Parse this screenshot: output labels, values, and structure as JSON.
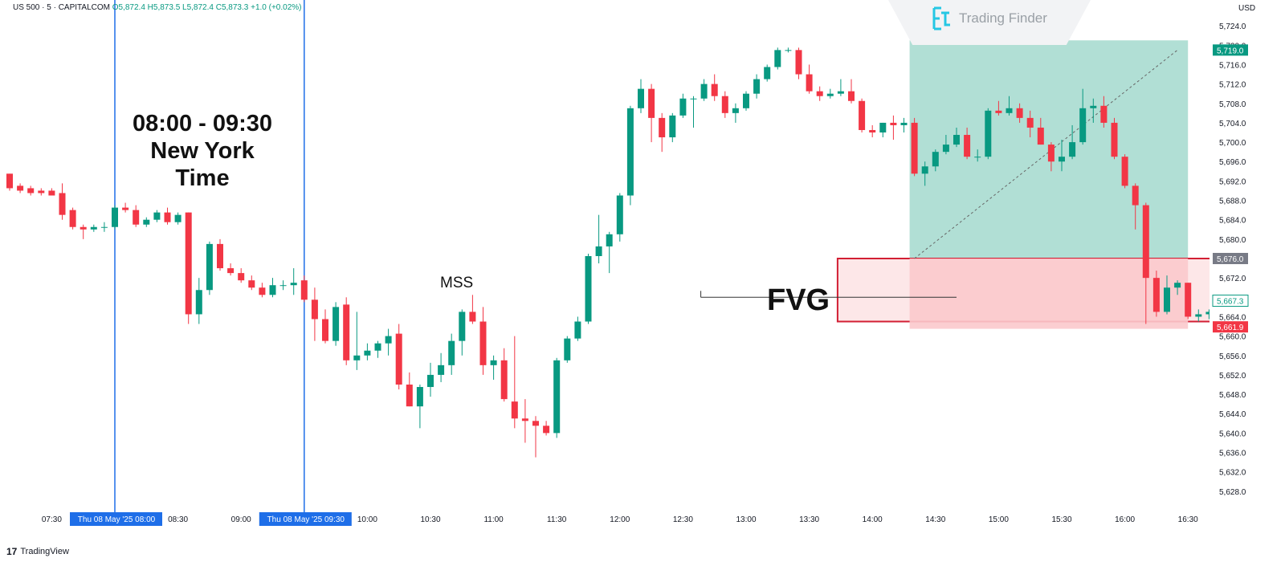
{
  "header": {
    "symbol": "US 500 · 5 · CAPITALCOM",
    "ohlc": "O5,872.4  H5,873.5  L5,872.4  C5,873.3  +1.0 (+0.02%)"
  },
  "currency": "USD",
  "watermark": "Trading Finder",
  "annotations": {
    "session_time": "08:00  -  09:30",
    "session_zone": "New York Time",
    "mss": "MSS",
    "fvg": "FVG"
  },
  "footer": {
    "brand": "TradingView"
  },
  "colors": {
    "bull": "#089981",
    "bear": "#f23645",
    "session_line": "#1e6ee8",
    "zone_green": "#a8dcd0",
    "zone_red": "#fbc9cc",
    "fvg_border": "#d21f34"
  },
  "chart_data": {
    "type": "candlestick",
    "ylim": [
      5624,
      5728
    ],
    "y_ticks": [
      "5,724.0",
      "5,720.0",
      "5,716.0",
      "5,712.0",
      "5,708.0",
      "5,704.0",
      "5,700.0",
      "5,696.0",
      "5,692.0",
      "5,688.0",
      "5,684.0",
      "5,680.0",
      "5,676.0",
      "5,672.0",
      "5,668.0",
      "5,664.0",
      "5,660.0",
      "5,656.0",
      "5,652.0",
      "5,648.0",
      "5,644.0",
      "5,640.0",
      "5,636.0",
      "5,632.0",
      "5,628.0"
    ],
    "x_ticks": [
      {
        "label": "07:30",
        "pos": 4
      },
      {
        "label": "08:30",
        "pos": 16
      },
      {
        "label": "09:00",
        "pos": 22
      },
      {
        "label": "10:00",
        "pos": 34
      },
      {
        "label": "10:30",
        "pos": 40
      },
      {
        "label": "11:00",
        "pos": 46
      },
      {
        "label": "11:30",
        "pos": 52
      },
      {
        "label": "12:00",
        "pos": 58
      },
      {
        "label": "12:30",
        "pos": 64
      },
      {
        "label": "13:00",
        "pos": 70
      },
      {
        "label": "13:30",
        "pos": 76
      },
      {
        "label": "14:00",
        "pos": 82
      },
      {
        "label": "14:30",
        "pos": 88
      },
      {
        "label": "15:00",
        "pos": 94
      },
      {
        "label": "15:30",
        "pos": 100
      },
      {
        "label": "16:00",
        "pos": 106
      },
      {
        "label": "16:30",
        "pos": 112
      }
    ],
    "session_markers": [
      {
        "label": "Thu 08 May '25   08:00",
        "pos": 10
      },
      {
        "label": "Thu 08 May '25   09:30",
        "pos": 28
      }
    ],
    "price_tags": [
      {
        "label": "5,719.0",
        "value": 5719.0,
        "style": "bull"
      },
      {
        "label": "5,676.0",
        "value": 5676.0,
        "style": "gray"
      },
      {
        "label": "5,667.3",
        "value": 5667.3,
        "style": "outline"
      },
      {
        "label": "5,661.9",
        "value": 5661.9,
        "style": "bear"
      }
    ],
    "candles": [
      [
        5693.5,
        5693.5,
        5690.0,
        5690.5
      ],
      [
        5691.0,
        5691.5,
        5689.5,
        5690.0
      ],
      [
        5690.5,
        5691.0,
        5689.0,
        5689.5
      ],
      [
        5690.0,
        5690.5,
        5689.0,
        5689.5
      ],
      [
        5690.0,
        5690.5,
        5689.0,
        5689.0
      ],
      [
        5689.5,
        5691.5,
        5684.0,
        5685.0
      ],
      [
        5686.0,
        5686.5,
        5682.0,
        5682.5
      ],
      [
        5682.5,
        5683.0,
        5680.0,
        5682.0
      ],
      [
        5682.0,
        5683.0,
        5681.5,
        5682.5
      ],
      [
        5682.5,
        5683.5,
        5681.5,
        5682.5
      ],
      [
        5682.5,
        5687.0,
        5682.0,
        5686.5
      ],
      [
        5686.5,
        5687.5,
        5685.5,
        5686.0
      ],
      [
        5686.0,
        5687.0,
        5682.5,
        5683.0
      ],
      [
        5683.0,
        5684.5,
        5682.5,
        5684.0
      ],
      [
        5684.0,
        5686.0,
        5683.5,
        5685.5
      ],
      [
        5685.5,
        5686.5,
        5683.0,
        5683.5
      ],
      [
        5683.5,
        5685.5,
        5683.0,
        5685.0
      ],
      [
        5685.5,
        5685.5,
        5662.5,
        5664.5
      ],
      [
        5664.5,
        5672.0,
        5662.5,
        5669.5
      ],
      [
        5669.5,
        5679.5,
        5668.5,
        5679.0
      ],
      [
        5679.0,
        5680.0,
        5673.5,
        5674.0
      ],
      [
        5674.0,
        5675.0,
        5672.5,
        5673.0
      ],
      [
        5673.0,
        5674.0,
        5671.0,
        5671.5
      ],
      [
        5671.5,
        5672.5,
        5669.5,
        5670.0
      ],
      [
        5670.0,
        5671.0,
        5668.0,
        5668.5
      ],
      [
        5668.5,
        5672.0,
        5668.0,
        5670.5
      ],
      [
        5670.5,
        5671.5,
        5669.5,
        5670.5
      ],
      [
        5670.5,
        5674.0,
        5668.5,
        5671.0
      ],
      [
        5671.5,
        5672.5,
        5667.0,
        5667.5
      ],
      [
        5667.5,
        5670.0,
        5659.0,
        5663.5
      ],
      [
        5663.5,
        5665.5,
        5658.5,
        5659.0
      ],
      [
        5659.0,
        5667.0,
        5658.0,
        5666.0
      ],
      [
        5666.5,
        5668.0,
        5654.0,
        5655.0
      ],
      [
        5655.0,
        5665.0,
        5653.0,
        5656.0
      ],
      [
        5656.0,
        5658.5,
        5655.0,
        5657.0
      ],
      [
        5657.0,
        5659.0,
        5655.5,
        5658.5
      ],
      [
        5658.5,
        5661.5,
        5656.0,
        5660.0
      ],
      [
        5660.5,
        5662.5,
        5649.0,
        5650.0
      ],
      [
        5650.0,
        5652.5,
        5645.5,
        5645.5
      ],
      [
        5645.5,
        5650.0,
        5641.0,
        5649.5
      ],
      [
        5649.5,
        5654.5,
        5647.5,
        5652.0
      ],
      [
        5652.0,
        5656.5,
        5650.5,
        5654.0
      ],
      [
        5654.0,
        5660.5,
        5652.0,
        5659.0
      ],
      [
        5659.0,
        5665.5,
        5656.0,
        5665.0
      ],
      [
        5665.0,
        5668.5,
        5662.5,
        5663.0
      ],
      [
        5663.0,
        5666.0,
        5652.0,
        5654.0
      ],
      [
        5654.0,
        5656.0,
        5651.0,
        5655.0
      ],
      [
        5655.0,
        5657.5,
        5646.5,
        5647.0
      ],
      [
        5646.5,
        5660.0,
        5641.0,
        5643.0
      ],
      [
        5643.0,
        5647.0,
        5638.0,
        5642.5
      ],
      [
        5642.5,
        5643.5,
        5635.0,
        5641.5
      ],
      [
        5641.5,
        5642.5,
        5639.5,
        5640.0
      ],
      [
        5640.0,
        5655.5,
        5639.0,
        5655.0
      ],
      [
        5655.0,
        5660.0,
        5654.5,
        5659.5
      ],
      [
        5659.5,
        5664.0,
        5659.0,
        5663.0
      ],
      [
        5663.0,
        5677.0,
        5662.5,
        5676.5
      ],
      [
        5676.5,
        5685.0,
        5675.0,
        5678.5
      ],
      [
        5678.5,
        5681.5,
        5673.0,
        5681.0
      ],
      [
        5681.0,
        5689.5,
        5679.5,
        5689.0
      ],
      [
        5689.0,
        5707.5,
        5687.0,
        5707.0
      ],
      [
        5707.0,
        5713.0,
        5706.0,
        5711.0
      ],
      [
        5711.0,
        5712.0,
        5700.0,
        5705.0
      ],
      [
        5705.0,
        5706.0,
        5698.0,
        5701.0
      ],
      [
        5701.0,
        5706.0,
        5700.0,
        5705.5
      ],
      [
        5705.5,
        5710.0,
        5705.0,
        5709.0
      ],
      [
        5709.0,
        5709.5,
        5703.0,
        5709.0
      ],
      [
        5709.0,
        5713.0,
        5708.5,
        5712.0
      ],
      [
        5712.0,
        5714.0,
        5708.5,
        5709.5
      ],
      [
        5709.5,
        5710.5,
        5705.0,
        5706.0
      ],
      [
        5706.0,
        5708.0,
        5704.0,
        5707.0
      ],
      [
        5707.0,
        5710.5,
        5706.5,
        5710.0
      ],
      [
        5710.0,
        5714.0,
        5709.0,
        5713.0
      ],
      [
        5713.0,
        5716.0,
        5712.5,
        5715.5
      ],
      [
        5715.5,
        5719.5,
        5715.0,
        5719.0
      ],
      [
        5719.0,
        5719.5,
        5718.5,
        5719.0
      ],
      [
        5719.0,
        5719.5,
        5713.0,
        5714.0
      ],
      [
        5714.0,
        5716.0,
        5710.0,
        5710.5
      ],
      [
        5710.5,
        5711.5,
        5708.5,
        5709.5
      ],
      [
        5709.5,
        5711.0,
        5709.0,
        5710.0
      ],
      [
        5710.0,
        5713.0,
        5709.5,
        5710.5
      ],
      [
        5710.5,
        5713.0,
        5708.0,
        5708.5
      ],
      [
        5708.5,
        5709.0,
        5702.0,
        5702.5
      ],
      [
        5702.5,
        5703.5,
        5701.0,
        5702.0
      ],
      [
        5702.0,
        5704.0,
        5701.0,
        5704.0
      ],
      [
        5704.0,
        5705.5,
        5700.5,
        5703.5
      ],
      [
        5703.5,
        5705.0,
        5702.0,
        5704.0
      ],
      [
        5704.0,
        5705.0,
        5693.0,
        5693.5
      ],
      [
        5693.5,
        5696.0,
        5691.0,
        5695.0
      ],
      [
        5695.0,
        5698.5,
        5694.0,
        5698.0
      ],
      [
        5698.0,
        5701.5,
        5697.5,
        5699.5
      ],
      [
        5699.5,
        5703.0,
        5699.0,
        5701.5
      ],
      [
        5701.5,
        5703.0,
        5696.5,
        5697.0
      ],
      [
        5697.0,
        5698.5,
        5696.0,
        5697.0
      ],
      [
        5697.0,
        5707.0,
        5696.5,
        5706.5
      ],
      [
        5706.5,
        5708.5,
        5705.5,
        5706.0
      ],
      [
        5706.0,
        5709.5,
        5705.5,
        5707.0
      ],
      [
        5707.0,
        5708.0,
        5704.0,
        5705.0
      ],
      [
        5705.0,
        5706.5,
        5701.0,
        5703.0
      ],
      [
        5703.0,
        5705.0,
        5699.5,
        5699.5
      ],
      [
        5699.5,
        5700.0,
        5694.0,
        5696.0
      ],
      [
        5696.0,
        5700.5,
        5694.0,
        5697.0
      ],
      [
        5697.0,
        5703.5,
        5696.5,
        5700.0
      ],
      [
        5700.0,
        5711.0,
        5699.5,
        5707.0
      ],
      [
        5707.0,
        5709.0,
        5704.0,
        5707.5
      ],
      [
        5707.5,
        5709.5,
        5703.0,
        5704.0
      ],
      [
        5704.0,
        5705.0,
        5696.5,
        5697.0
      ],
      [
        5697.0,
        5697.5,
        5690.5,
        5691.0
      ],
      [
        5691.0,
        5691.5,
        5682.0,
        5687.0
      ],
      [
        5687.0,
        5687.5,
        5662.5,
        5672.0
      ],
      [
        5672.0,
        5673.5,
        5664.0,
        5665.0
      ],
      [
        5665.0,
        5672.5,
        5664.5,
        5670.0
      ],
      [
        5670.0,
        5671.5,
        5668.5,
        5671.0
      ],
      [
        5671.0,
        5671.0,
        5663.5,
        5664.0
      ],
      [
        5664.0,
        5665.5,
        5663.0,
        5664.5
      ],
      [
        5664.5,
        5665.5,
        5663.5,
        5665.0
      ],
      [
        5665.0,
        5665.5,
        5663.0,
        5663.0
      ],
      [
        5663.0,
        5664.5,
        5662.5,
        5664.0
      ],
      [
        5664.0,
        5666.5,
        5663.5,
        5666.0
      ],
      [
        5665.5,
        5666.5,
        5665.0,
        5666.0
      ],
      [
        5666.0,
        5667.0,
        5665.5,
        5666.5
      ],
      [
        5666.5,
        5668.5,
        5666.0,
        5667.5
      ]
    ],
    "zones": {
      "green_box": {
        "from": 5676.0,
        "to": 5721.0,
        "start": 86,
        "end": 112
      },
      "red_box": {
        "from": 5661.5,
        "to": 5676.0,
        "start": 86,
        "end": 112
      },
      "fvg_box": {
        "from": 5663.0,
        "to": 5676.0,
        "start": 79,
        "end": 157
      },
      "mss_line": {
        "value": 5668.0,
        "start": 66,
        "end": 90
      },
      "diag": {
        "from": [
          86,
          5676.0
        ],
        "to": [
          111,
          5719.0
        ]
      }
    }
  }
}
